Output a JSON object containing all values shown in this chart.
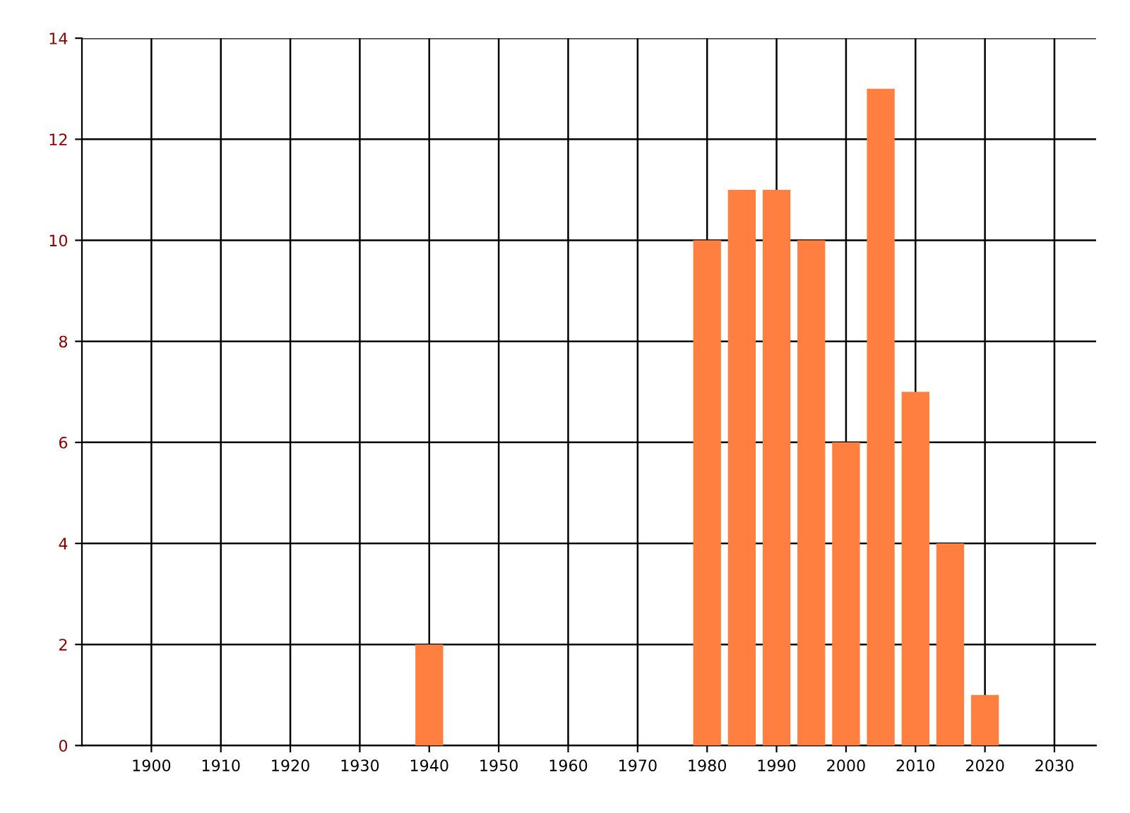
{
  "chart_data": {
    "type": "bar",
    "x": [
      1940,
      1980,
      1985,
      1990,
      1995,
      2000,
      2005,
      2010,
      2015,
      2020
    ],
    "values": [
      2,
      10,
      11,
      11,
      10,
      6,
      13,
      7,
      4,
      1
    ],
    "color": "#ff7f41",
    "xlim": [
      1890,
      2036
    ],
    "xticks": [
      1900,
      1910,
      1920,
      1930,
      1940,
      1950,
      1960,
      1970,
      1980,
      1990,
      2000,
      2010,
      2020,
      2030
    ],
    "ylim": [
      0,
      14
    ],
    "yticks": [
      0,
      2,
      4,
      6,
      8,
      10,
      12,
      14
    ],
    "grid": true
  }
}
